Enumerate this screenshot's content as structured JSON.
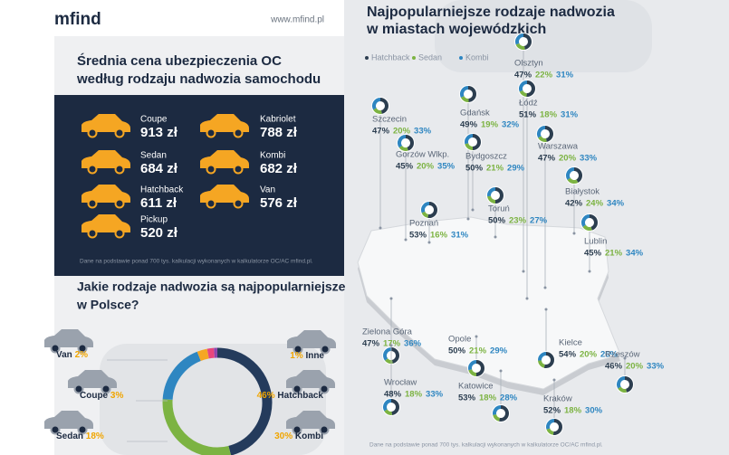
{
  "header": {
    "logo": "mfind",
    "url": "www.mfind.pl"
  },
  "prices": {
    "title": [
      "Średnia cena ubezpieczenia OC",
      "według rodzaju nadwozia samochodu"
    ],
    "items": [
      {
        "name": "Coupe",
        "price": "913 zł"
      },
      {
        "name": "Kabriolet",
        "price": "788 zł"
      },
      {
        "name": "Sedan",
        "price": "684 zł"
      },
      {
        "name": "Kombi",
        "price": "682 zł"
      },
      {
        "name": "Hatchback",
        "price": "611 zł"
      },
      {
        "name": "Van",
        "price": "576 zł"
      },
      {
        "name": "Pickup",
        "price": "520 zł"
      }
    ],
    "note": "Dane na podstawie ponad 700 tys. kalkulacji wykonanych w kalkulatorze OC/AC mfind.pl."
  },
  "poland": {
    "title": [
      "Jakie rodzaje nadwozia są najpopularniejsze",
      "w Polsce?"
    ],
    "segments": [
      {
        "name": "Hatchback",
        "value": 46,
        "label": "46%",
        "color": "#243b5c"
      },
      {
        "name": "Kombi",
        "value": 30,
        "label": "30%",
        "color": "#7cb342"
      },
      {
        "name": "Sedan",
        "value": 18,
        "label": "18%",
        "color": "#2e86c1"
      },
      {
        "name": "Coupe",
        "value": 3,
        "label": "3%",
        "color": "#f5a623"
      },
      {
        "name": "Van",
        "value": 2,
        "label": "2%",
        "color": "#e8467c"
      },
      {
        "name": "Inne",
        "value": 1,
        "label": "1%",
        "color": "#8e44ad"
      }
    ]
  },
  "cities_map": {
    "title": [
      "Najpopularniejsze rodzaje nadwozia",
      "w miastach wojewódzkich"
    ],
    "legend": [
      {
        "name": "Hatchback",
        "color": "#2c3e50"
      },
      {
        "name": "Sedan",
        "color": "#7cb342"
      },
      {
        "name": "Kombi",
        "color": "#2e86c1"
      }
    ],
    "cities": [
      {
        "name": "Olsztyn",
        "values": [
          47,
          22,
          31
        ],
        "labels": [
          "47%",
          "22%",
          "31%"
        ]
      },
      {
        "name": "Gdańsk",
        "values": [
          49,
          19,
          32
        ],
        "labels": [
          "49%",
          "19%",
          "32%"
        ]
      },
      {
        "name": "Łódź",
        "values": [
          51,
          18,
          31
        ],
        "labels": [
          "51%",
          "18%",
          "31%"
        ]
      },
      {
        "name": "Szczecin",
        "values": [
          47,
          20,
          33
        ],
        "labels": [
          "47%",
          "20%",
          "33%"
        ]
      },
      {
        "name": "Bydgoszcz",
        "values": [
          50,
          21,
          29
        ],
        "labels": [
          "50%",
          "21%",
          "29%"
        ]
      },
      {
        "name": "Warszawa",
        "values": [
          47,
          20,
          33
        ],
        "labels": [
          "47%",
          "20%",
          "33%"
        ]
      },
      {
        "name": "Gorzów Wlkp.",
        "values": [
          45,
          20,
          35
        ],
        "labels": [
          "45%",
          "20%",
          "35%"
        ]
      },
      {
        "name": "Białystok",
        "values": [
          42,
          24,
          34
        ],
        "labels": [
          "42%",
          "24%",
          "34%"
        ]
      },
      {
        "name": "Toruń",
        "values": [
          50,
          23,
          27
        ],
        "labels": [
          "50%",
          "23%",
          "27%"
        ]
      },
      {
        "name": "Poznań",
        "values": [
          53,
          16,
          31
        ],
        "labels": [
          "53%",
          "16%",
          "31%"
        ]
      },
      {
        "name": "Lublin",
        "values": [
          45,
          21,
          34
        ],
        "labels": [
          "45%",
          "21%",
          "34%"
        ]
      },
      {
        "name": "Zielona Góra",
        "values": [
          47,
          17,
          36
        ],
        "labels": [
          "47%",
          "17%",
          "36%"
        ]
      },
      {
        "name": "Opole",
        "values": [
          50,
          21,
          29
        ],
        "labels": [
          "50%",
          "21%",
          "29%"
        ]
      },
      {
        "name": "Kielce",
        "values": [
          54,
          20,
          26
        ],
        "labels": [
          "54%",
          "20%",
          "26%"
        ]
      },
      {
        "name": "Rzeszów",
        "values": [
          46,
          20,
          33
        ],
        "labels": [
          "46%",
          "20%",
          "33%"
        ]
      },
      {
        "name": "Wrocław",
        "values": [
          48,
          18,
          33
        ],
        "labels": [
          "48%",
          "18%",
          "33%"
        ]
      },
      {
        "name": "Katowice",
        "values": [
          53,
          18,
          28
        ],
        "labels": [
          "53%",
          "18%",
          "28%"
        ]
      },
      {
        "name": "Kraków",
        "values": [
          52,
          18,
          30
        ],
        "labels": [
          "52%",
          "18%",
          "30%"
        ]
      }
    ],
    "note": "Dane na podstawie ponad 700 tys. kalkulacji wykonanych w kalkulatorze OC/AC mfind.pl."
  }
}
